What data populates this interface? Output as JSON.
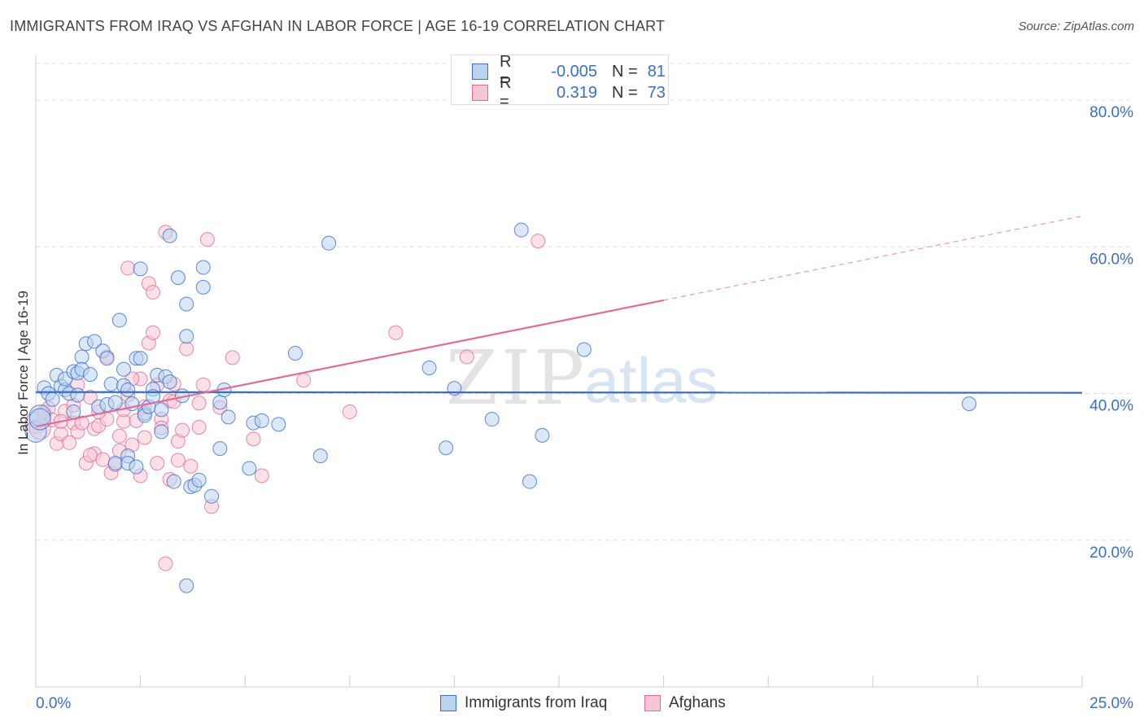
{
  "title": "IMMIGRANTS FROM IRAQ VS AFGHAN IN LABOR FORCE | AGE 16-19 CORRELATION CHART",
  "source": "Source: ZipAtlas.com",
  "watermark": {
    "zip": "ZIP",
    "atlas": "atlas"
  },
  "colors": {
    "blue": "#3a6fc4",
    "blue_fill": "#bcd3f0",
    "pink": "#e06c96",
    "pink_fill": "#f7c6d6",
    "grid": "#dddddd"
  },
  "stats": [
    {
      "label_r": "R =",
      "r": "-0.005",
      "label_n": "N =",
      "n": "81"
    },
    {
      "label_r": "R =",
      "r": "0.319",
      "label_n": "N =",
      "n": "73"
    }
  ],
  "chart_data": {
    "type": "scatter",
    "title": "IMMIGRANTS FROM IRAQ VS AFGHAN IN LABOR FORCE | AGE 16-19 CORRELATION CHART",
    "xlabel": "",
    "ylabel": "In Labor Force | Age 16-19",
    "xlim": [
      0,
      25
    ],
    "ylim": [
      0,
      85
    ],
    "x_tick_labels": {
      "min": "0.0%",
      "max": "25.0%"
    },
    "y_ticks": [
      {
        "value": 20,
        "label": "20.0%"
      },
      {
        "value": 40,
        "label": "40.0%"
      },
      {
        "value": 60,
        "label": "60.0%"
      },
      {
        "value": 80,
        "label": "80.0%"
      }
    ],
    "series": [
      {
        "name": "Immigrants from Iraq",
        "color": "blue",
        "trend": {
          "x0": 0,
          "y0": 40.2,
          "x1": 25,
          "y1": 40.1,
          "x_solid_end": 25
        },
        "points": [
          [
            0.0,
            34.8
          ],
          [
            0.1,
            37.0
          ],
          [
            0.2,
            40.8
          ],
          [
            0.3,
            40.0
          ],
          [
            0.4,
            39.2
          ],
          [
            0.5,
            42.5
          ],
          [
            0.6,
            41.0
          ],
          [
            0.7,
            40.5
          ],
          [
            0.7,
            42.0
          ],
          [
            0.8,
            40.0
          ],
          [
            0.9,
            43.0
          ],
          [
            0.9,
            37.5
          ],
          [
            1.0,
            42.8
          ],
          [
            1.1,
            45.0
          ],
          [
            1.1,
            43.3
          ],
          [
            1.2,
            46.8
          ],
          [
            1.3,
            42.6
          ],
          [
            1.4,
            47.1
          ],
          [
            1.5,
            38.2
          ],
          [
            1.6,
            45.8
          ],
          [
            1.7,
            38.5
          ],
          [
            1.8,
            41.3
          ],
          [
            1.9,
            38.8
          ],
          [
            1.9,
            30.5
          ],
          [
            2.0,
            50.0
          ],
          [
            2.1,
            43.3
          ],
          [
            2.1,
            41.1
          ],
          [
            2.2,
            31.5
          ],
          [
            2.2,
            30.5
          ],
          [
            2.3,
            38.6
          ],
          [
            2.4,
            30.0
          ],
          [
            2.4,
            44.8
          ],
          [
            2.5,
            57.0
          ],
          [
            2.6,
            37.3
          ],
          [
            2.6,
            37.0
          ],
          [
            2.7,
            38.2
          ],
          [
            2.8,
            40.6
          ],
          [
            2.8,
            39.6
          ],
          [
            2.9,
            42.5
          ],
          [
            3.0,
            34.8
          ],
          [
            3.1,
            42.3
          ],
          [
            3.2,
            41.6
          ],
          [
            3.2,
            61.5
          ],
          [
            3.3,
            28.0
          ],
          [
            3.4,
            55.8
          ],
          [
            3.5,
            39.7
          ],
          [
            3.6,
            47.8
          ],
          [
            3.6,
            52.2
          ],
          [
            3.7,
            27.3
          ],
          [
            3.8,
            27.5
          ],
          [
            3.6,
            13.8
          ],
          [
            3.9,
            28.2
          ],
          [
            4.0,
            54.5
          ],
          [
            4.2,
            26.0
          ],
          [
            4.4,
            32.5
          ],
          [
            4.4,
            38.8
          ],
          [
            4.5,
            40.5
          ],
          [
            4.6,
            36.8
          ],
          [
            4.0,
            57.2
          ],
          [
            5.2,
            36.0
          ],
          [
            5.1,
            29.8
          ],
          [
            5.4,
            36.3
          ],
          [
            5.8,
            35.8
          ],
          [
            6.2,
            45.5
          ],
          [
            6.8,
            31.5
          ],
          [
            7.0,
            60.5
          ],
          [
            9.4,
            43.5
          ],
          [
            9.8,
            32.6
          ],
          [
            10.0,
            40.7
          ],
          [
            10.9,
            36.5
          ],
          [
            11.6,
            62.3
          ],
          [
            11.8,
            28.0
          ],
          [
            12.1,
            34.3
          ],
          [
            13.1,
            46.0
          ],
          [
            22.3,
            38.6
          ],
          [
            2.5,
            44.8
          ],
          [
            1.0,
            39.8
          ],
          [
            0.1,
            36.5
          ],
          [
            3.0,
            37.8
          ],
          [
            2.2,
            40.5
          ],
          [
            1.7,
            44.8
          ]
        ]
      },
      {
        "name": "Afghans",
        "color": "pink",
        "trend": {
          "x0": 0,
          "y0": 35.5,
          "x1": 25,
          "y1": 64.2,
          "x_solid_end": 15.0
        },
        "points": [
          [
            0.0,
            36.0
          ],
          [
            0.1,
            35.2
          ],
          [
            0.2,
            37.5
          ],
          [
            0.3,
            38.0
          ],
          [
            0.4,
            36.4
          ],
          [
            0.5,
            33.2
          ],
          [
            0.6,
            34.5
          ],
          [
            0.7,
            37.6
          ],
          [
            0.8,
            33.3
          ],
          [
            0.9,
            36.0
          ],
          [
            1.0,
            34.8
          ],
          [
            1.0,
            41.2
          ],
          [
            1.1,
            36.0
          ],
          [
            1.2,
            30.5
          ],
          [
            1.3,
            39.5
          ],
          [
            1.4,
            31.8
          ],
          [
            1.4,
            35.2
          ],
          [
            1.5,
            35.6
          ],
          [
            1.6,
            31.0
          ],
          [
            1.7,
            36.5
          ],
          [
            1.7,
            45.0
          ],
          [
            1.8,
            29.2
          ],
          [
            1.9,
            30.3
          ],
          [
            2.0,
            34.2
          ],
          [
            2.0,
            32.2
          ],
          [
            2.1,
            36.2
          ],
          [
            2.1,
            37.8
          ],
          [
            2.2,
            57.1
          ],
          [
            2.2,
            39.8
          ],
          [
            2.3,
            33.0
          ],
          [
            2.4,
            36.3
          ],
          [
            2.5,
            42.0
          ],
          [
            2.5,
            28.8
          ],
          [
            2.6,
            38.2
          ],
          [
            2.6,
            34.0
          ],
          [
            2.7,
            55.0
          ],
          [
            2.7,
            46.9
          ],
          [
            2.8,
            53.8
          ],
          [
            2.8,
            48.3
          ],
          [
            2.9,
            41.2
          ],
          [
            3.0,
            36.5
          ],
          [
            3.0,
            35.3
          ],
          [
            3.1,
            62.0
          ],
          [
            3.1,
            16.8
          ],
          [
            3.2,
            39.0
          ],
          [
            3.2,
            28.3
          ],
          [
            3.3,
            41.3
          ],
          [
            3.4,
            30.9
          ],
          [
            3.4,
            33.5
          ],
          [
            3.5,
            35.0
          ],
          [
            3.6,
            46.1
          ],
          [
            3.7,
            30.1
          ],
          [
            3.9,
            38.7
          ],
          [
            3.9,
            35.4
          ],
          [
            4.0,
            41.2
          ],
          [
            4.1,
            61.0
          ],
          [
            4.2,
            24.6
          ],
          [
            4.4,
            38.1
          ],
          [
            4.7,
            44.9
          ],
          [
            5.2,
            33.8
          ],
          [
            5.4,
            28.8
          ],
          [
            6.4,
            41.8
          ],
          [
            7.5,
            37.5
          ],
          [
            8.6,
            48.3
          ],
          [
            10.3,
            45.0
          ],
          [
            12.0,
            60.8
          ],
          [
            3.3,
            38.9
          ],
          [
            2.3,
            42.0
          ],
          [
            0.6,
            36.2
          ],
          [
            1.3,
            31.6
          ],
          [
            0.9,
            38.4
          ],
          [
            1.5,
            37.5
          ],
          [
            2.9,
            30.5
          ]
        ]
      }
    ]
  }
}
